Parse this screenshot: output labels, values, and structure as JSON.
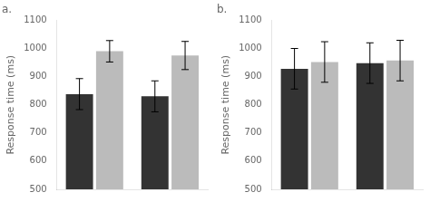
{
  "chart_data": [
    {
      "type": "bar",
      "title": "a.",
      "ylabel": "Response time (ms)",
      "categories": [
        null,
        null
      ],
      "series": [
        {
          "color": "#333333",
          "values": [
            838,
            830
          ],
          "errors": [
            55,
            55
          ]
        },
        {
          "color": "#bbbbbb",
          "values": [
            990,
            975
          ],
          "errors": [
            38,
            50
          ]
        }
      ],
      "ylim": [
        500,
        1100
      ],
      "yticks": [
        500,
        600,
        700,
        800,
        900,
        1000,
        1100
      ],
      "grid": false,
      "tick_labels": "y"
    },
    {
      "type": "bar",
      "title": "b.",
      "ylabel": "Response time (ms)",
      "categories": [
        null,
        null
      ],
      "series": [
        {
          "color": "#333333",
          "values": [
            928,
            948
          ],
          "errors": [
            72,
            72
          ]
        },
        {
          "color": "#bbbbbb",
          "values": [
            952,
            957
          ],
          "errors": [
            72,
            72
          ]
        }
      ],
      "ylim": [
        500,
        1100
      ],
      "yticks": [
        500,
        600,
        700,
        800,
        900,
        1000,
        1100
      ],
      "grid": false,
      "tick_labels": "y"
    }
  ]
}
